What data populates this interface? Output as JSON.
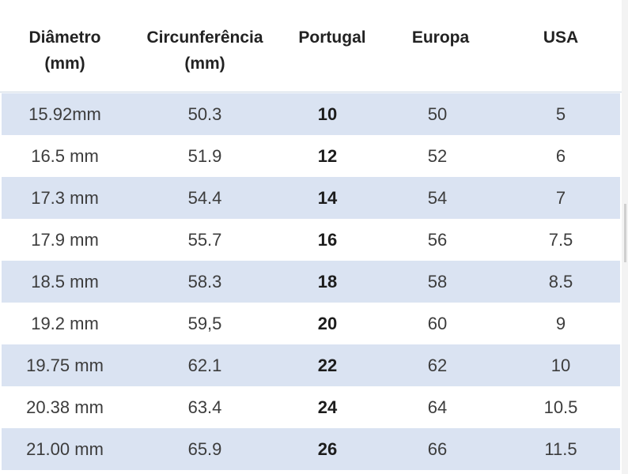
{
  "table": {
    "headers": [
      "Diâmetro\n(mm)",
      "Circunferência\n(mm)",
      "Portugal",
      "Europa",
      "USA"
    ],
    "rows": [
      [
        "15.92mm",
        "50.3",
        "10",
        "50",
        "5"
      ],
      [
        "16.5 mm",
        "51.9",
        "12",
        "52",
        "6"
      ],
      [
        "17.3 mm",
        "54.4",
        "14",
        "54",
        "7"
      ],
      [
        "17.9 mm",
        "55.7",
        "16",
        "56",
        "7.5"
      ],
      [
        "18.5 mm",
        "58.3",
        "18",
        "58",
        "8.5"
      ],
      [
        "19.2 mm",
        "59,5",
        "20",
        "60",
        "9"
      ],
      [
        "19.75 mm",
        "62.1",
        "22",
        "62",
        "10"
      ],
      [
        "20.38 mm",
        "63.4",
        "24",
        "64",
        "10.5"
      ],
      [
        "21.00 mm",
        "65.9",
        "26",
        "66",
        "11.5"
      ]
    ]
  },
  "colors": {
    "row_shade": "#dae3f2",
    "header_text": "#222222",
    "body_text": "#3c3c3c"
  }
}
